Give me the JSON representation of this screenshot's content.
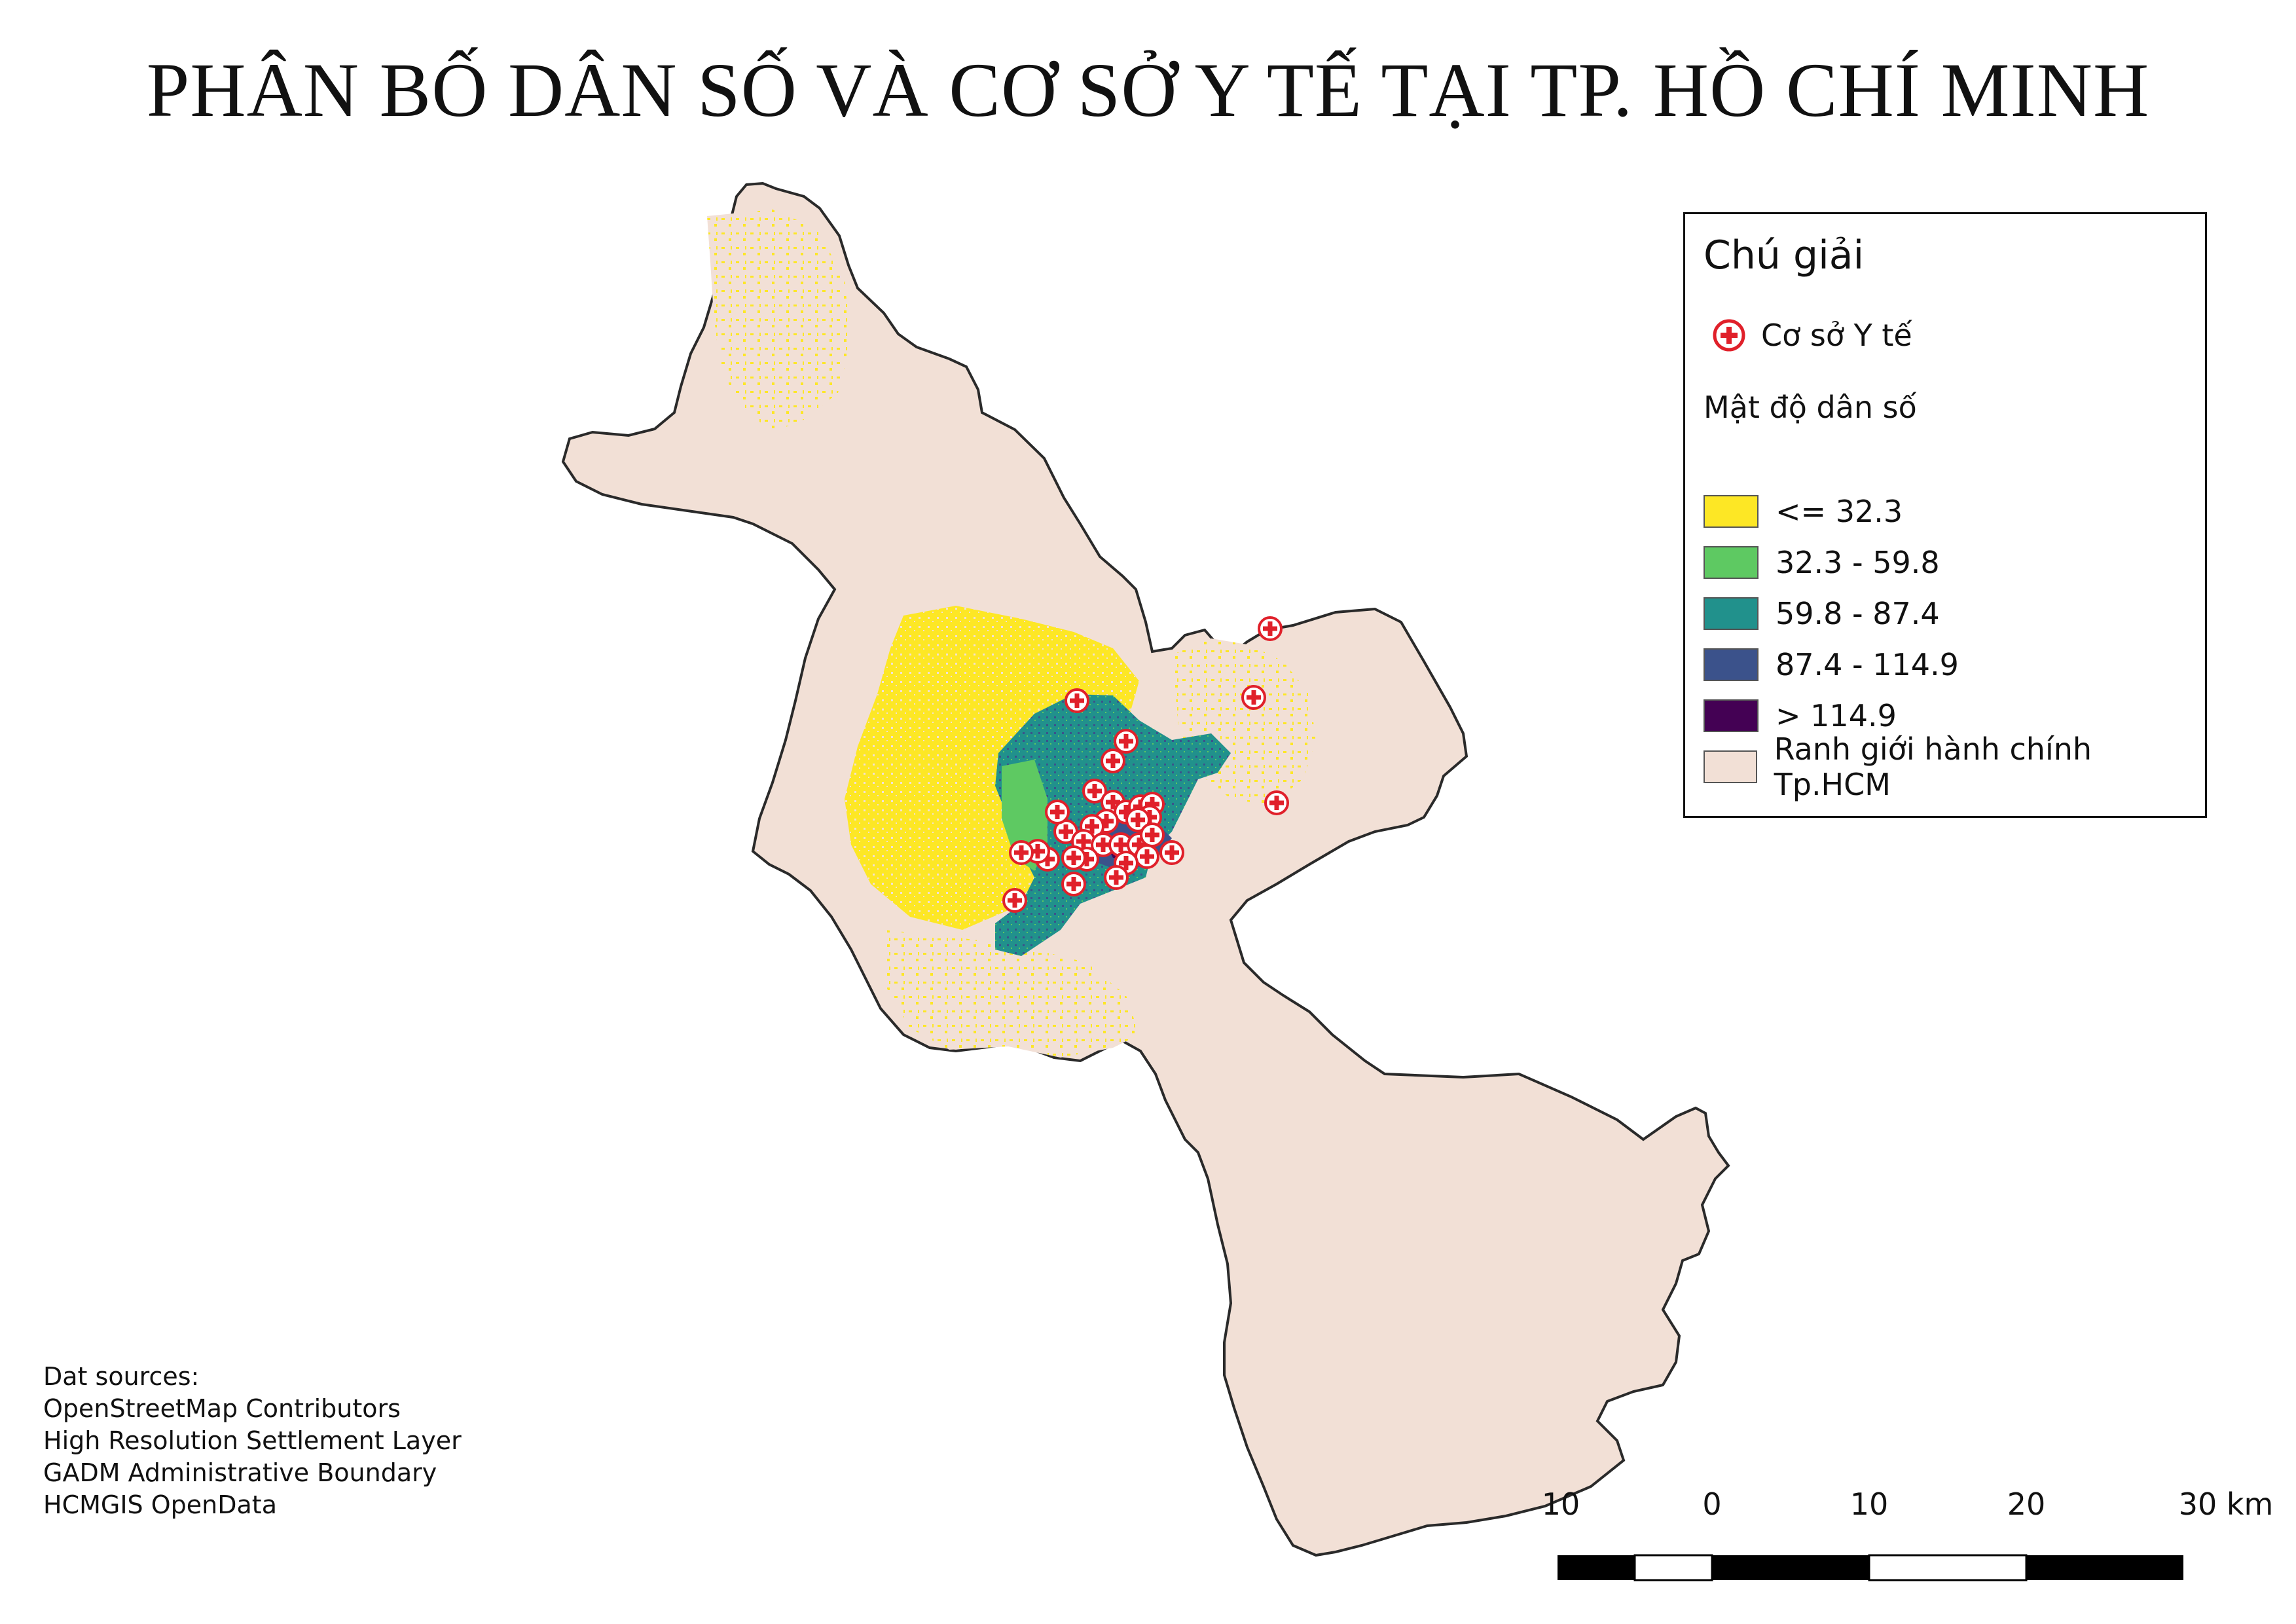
{
  "map": {
    "title": "PHÂN BỐ DÂN SỐ VÀ CƠ SỞ Y TẾ TẠI TP. HỒ CHÍ MINH",
    "colors": {
      "boundary_fill": "#f2e0d6",
      "boundary_stroke": "#2a2a2a",
      "facility_red": "#e0202a"
    }
  },
  "legend": {
    "title": "Chú giải",
    "facility_label": "Cơ sở Y tế",
    "facility_icon": "medical-cross-icon",
    "density_title": "Mật độ dân số",
    "classes": [
      {
        "label": "<= 32.3",
        "color": "#fde725"
      },
      {
        "label": "32.3 - 59.8",
        "color": "#5ec962"
      },
      {
        "label": "59.8 - 87.4",
        "color": "#21918c"
      },
      {
        "label": "87.4 - 114.9",
        "color": "#3b528b"
      },
      {
        "label": "> 114.9",
        "color": "#440154"
      },
      {
        "label": "Ranh giới hành chính Tp.HCM",
        "color": "#f2e0d6"
      }
    ]
  },
  "sources": {
    "heading": "Dat sources:",
    "items": [
      "OpenStreetMap Contributors",
      "High Resolution Settlement Layer",
      "GADM Administrative Boundary",
      "HCMGIS OpenData"
    ]
  },
  "scalebar": {
    "labels": [
      "10",
      "0",
      "10",
      "20",
      "30 km"
    ]
  }
}
